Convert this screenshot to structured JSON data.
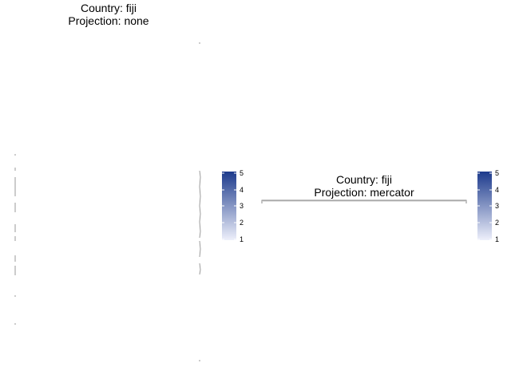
{
  "panels": [
    {
      "title_line1": "Country: fiji",
      "title_line2": "Projection: none",
      "legend": {
        "min": 1,
        "max": 5,
        "ticks": [
          "5",
          "4",
          "3",
          "2",
          "1"
        ]
      }
    },
    {
      "title_line1": "Country: fiji",
      "title_line2": "Projection: mercator",
      "legend": {
        "min": 1,
        "max": 5,
        "ticks": [
          "5",
          "4",
          "3",
          "2",
          "1"
        ]
      }
    }
  ],
  "colors": {
    "legend_low": "#eef0fb",
    "legend_high": "#1c3a8c",
    "outline": "#9a9a9a"
  }
}
